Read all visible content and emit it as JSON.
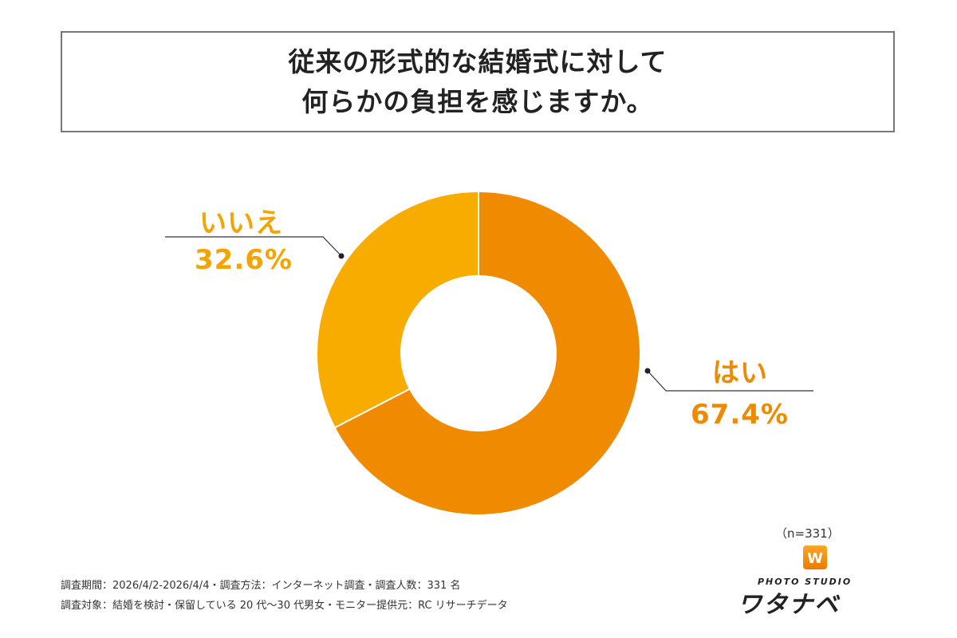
{
  "title": {
    "line1": "従来の形式的な結婚式に対して",
    "line2": "何らかの負担を感じますか。"
  },
  "chart_data": {
    "type": "pie",
    "donut": true,
    "title": "従来の形式的な結婚式に対して何らかの負担を感じますか。",
    "slices": [
      {
        "label": "はい",
        "value": 67.4,
        "value_label": "67.4%",
        "color": "#F08A00"
      },
      {
        "label": "いいえ",
        "value": 32.6,
        "value_label": "32.6%",
        "color": "#F8AC00"
      }
    ],
    "start": "top",
    "direction": "clockwise"
  },
  "sample": "（n=331）",
  "notes": {
    "line1": "調査期間：2026/4/2-2026/4/4・調査方法：インターネット調査・調査人数：331 名",
    "line2": "調査対象：結婚を検討・保留している 20 代〜30 代男女・モニター提供元：RC リサーチデータ"
  },
  "logo": {
    "sub": "PHOTO STUDIO",
    "main": "ワタナベ",
    "icon": "W"
  }
}
